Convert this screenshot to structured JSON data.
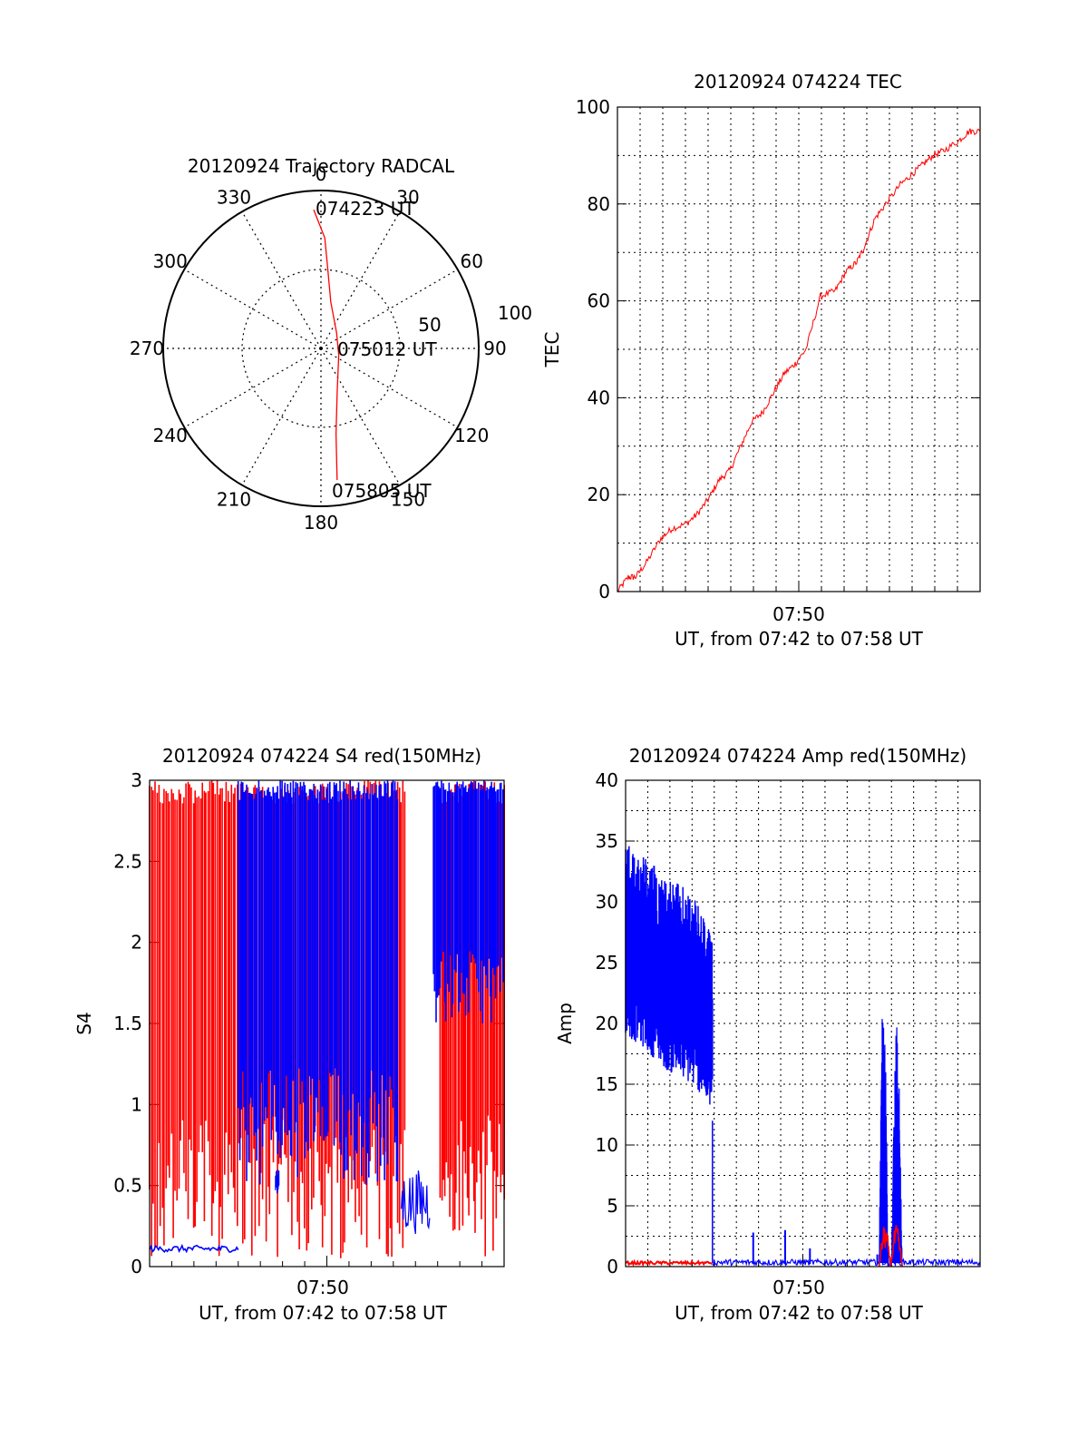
{
  "colors": {
    "red": "#ff0000",
    "blue": "#0000ff",
    "axis": "#000000",
    "grid": "#000000"
  },
  "chart_data": [
    {
      "type": "polar",
      "title": "20120924 Trajectory RADCAL",
      "angle_labels": [
        "0",
        "30",
        "60",
        "90",
        "120",
        "150",
        "180",
        "210",
        "240",
        "270",
        "300",
        "330"
      ],
      "radial_labels": [
        "50",
        "100"
      ],
      "radial_range": [
        0,
        100
      ],
      "annotations": [
        "074223 UT",
        "075012 UT",
        "075805 UT"
      ],
      "series": [
        {
          "color": "red",
          "points": [
            {
              "az": 357,
              "r": 88
            },
            {
              "az": 2,
              "r": 70
            },
            {
              "az": 5,
              "r": 50
            },
            {
              "az": 12,
              "r": 30
            },
            {
              "az": 45,
              "r": 14
            },
            {
              "az": 110,
              "r": 12
            },
            {
              "az": 160,
              "r": 30
            },
            {
              "az": 170,
              "r": 55
            },
            {
              "az": 173,
              "r": 84
            }
          ]
        }
      ]
    },
    {
      "type": "line",
      "title": "20120924 074224 TEC",
      "ylabel": "TEC",
      "xlabel": "UT, from 07:42 to 07:58 UT",
      "xtick_label": "07:50",
      "yticks": [
        "0",
        "20",
        "40",
        "60",
        "80",
        "100"
      ],
      "ylim": [
        0,
        100
      ],
      "grid": true,
      "series": [
        {
          "color": "red",
          "x_fraction": [
            0.0,
            0.03,
            0.05,
            0.08,
            0.12,
            0.15,
            0.19,
            0.22,
            0.25,
            0.28,
            0.31,
            0.34,
            0.37,
            0.4,
            0.43,
            0.46,
            0.49,
            0.52,
            0.56,
            0.6,
            0.63,
            0.66,
            0.68,
            0.71,
            0.74,
            0.78,
            0.81,
            0.84,
            0.87,
            0.9,
            0.94,
            0.97,
            1.0
          ],
          "values": [
            0,
            3,
            3,
            6,
            11,
            13,
            14,
            16,
            19,
            23,
            25,
            30,
            35,
            37,
            41,
            45,
            47,
            50,
            61,
            62,
            66,
            68,
            71,
            77,
            80,
            84,
            86,
            88,
            90,
            91,
            93,
            95,
            95
          ]
        }
      ]
    },
    {
      "type": "line",
      "title": "20120924 074224 S4 red(150MHz)",
      "ylabel": "S4",
      "xlabel": "UT, from 07:42 to 07:58 UT",
      "xtick_label": "07:50",
      "yticks": [
        "0",
        "0.5",
        "1",
        "1.5",
        "2",
        "2.5",
        "3"
      ],
      "ylim": [
        0,
        3
      ],
      "grid": false,
      "series": [
        {
          "color": "red",
          "segments": [
            {
              "x": [
                0.0,
                0.72
              ],
              "band": [
                0.05,
                3.0
              ],
              "density": 140
            },
            {
              "x": [
                0.82,
                1.0
              ],
              "band": [
                0.05,
                3.0
              ],
              "density": 40
            }
          ]
        },
        {
          "color": "blue",
          "baseline": {
            "x": [
              0.0,
              0.25
            ],
            "value": 0.11
          },
          "segments": [
            {
              "x": [
                0.25,
                0.7
              ],
              "band": [
                0.5,
                3.0
              ],
              "density": 110
            },
            {
              "x": [
                0.8,
                1.0
              ],
              "band": [
                1.5,
                3.0
              ],
              "density": 50
            }
          ],
          "fragments": [
            {
              "x": [
                0.355,
                0.365
              ],
              "band": [
                0.45,
                0.6
              ]
            },
            {
              "x": [
                0.71,
                0.79
              ],
              "band": [
                0.2,
                0.6
              ]
            }
          ]
        }
      ]
    },
    {
      "type": "line",
      "title": "20120924 074224 Amp red(150MHz)",
      "ylabel": "Amp",
      "xlabel": "UT, from 07:42 to 07:58 UT",
      "xtick_label": "07:50",
      "yticks": [
        "0",
        "5",
        "10",
        "15",
        "20",
        "25",
        "30",
        "35",
        "40"
      ],
      "ylim": [
        0,
        40
      ],
      "grid": true,
      "series": [
        {
          "color": "blue",
          "envelope": [
            {
              "x": 0.0,
              "low": 19,
              "high": 35
            },
            {
              "x": 0.05,
              "low": 18,
              "high": 34
            },
            {
              "x": 0.12,
              "low": 16,
              "high": 32
            },
            {
              "x": 0.18,
              "low": 15,
              "high": 31
            },
            {
              "x": 0.22,
              "low": 14,
              "high": 29
            },
            {
              "x": 0.245,
              "low": 12,
              "high": 27
            }
          ],
          "tail_level": 0.5,
          "spikes": [
            {
              "x": 0.36,
              "value": 2.8
            },
            {
              "x": 0.45,
              "value": 3.0
            },
            {
              "x": 0.52,
              "value": 1.5
            },
            {
              "x": 0.71,
              "value": 1.0
            },
            {
              "x": 0.74,
              "value": 1.2
            }
          ],
          "bursts": [
            {
              "x": [
                0.715,
                0.74
              ],
              "high": 23
            },
            {
              "x": [
                0.75,
                0.78
              ],
              "high": 20
            }
          ]
        },
        {
          "color": "red",
          "baseline": {
            "x": [
              0.0,
              0.245
            ],
            "value": 0.3
          },
          "bursts": [
            {
              "x": [
                0.715,
                0.78
              ],
              "high": 3.5
            }
          ]
        }
      ]
    }
  ]
}
